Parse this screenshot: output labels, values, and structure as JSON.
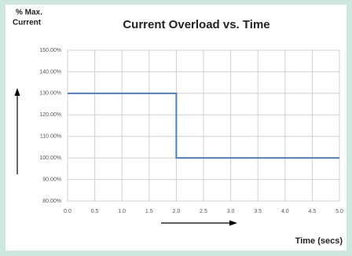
{
  "chart_data": {
    "type": "line",
    "title": "Current Overload vs. Time",
    "ylabel": [
      "% Max.",
      "Current"
    ],
    "xlabel": "Time (secs)",
    "x": [
      0,
      2,
      2,
      5
    ],
    "series": [
      {
        "name": "Current",
        "color": "#4a7fc4",
        "values": [
          130,
          130,
          100,
          100
        ]
      }
    ],
    "xlim": [
      0,
      5
    ],
    "xticks": [
      {
        "value": 0,
        "label": "0.0"
      },
      0.5,
      {
        "value": 1,
        "label": "1.0"
      },
      1.5,
      {
        "value": 2,
        "label": "2.0"
      },
      2.5,
      {
        "value": 3,
        "label": "3.0"
      },
      3.5,
      {
        "value": 4,
        "label": "4.0"
      },
      4.5,
      {
        "value": 5,
        "label": "5.0"
      }
    ],
    "ylim": [
      80,
      150
    ],
    "yticks": [
      {
        "value": 80,
        "label": "80.00%"
      },
      {
        "value": 90,
        "label": "90.00%"
      },
      {
        "value": 100,
        "label": "100.00%"
      },
      {
        "value": 110,
        "label": "110.00%"
      },
      {
        "value": 120,
        "label": "120.00%"
      },
      {
        "value": 130,
        "label": "130.00%"
      },
      {
        "value": 140,
        "label": "140.00%"
      },
      {
        "value": 150,
        "label": "150.00%"
      }
    ],
    "grid": true
  }
}
